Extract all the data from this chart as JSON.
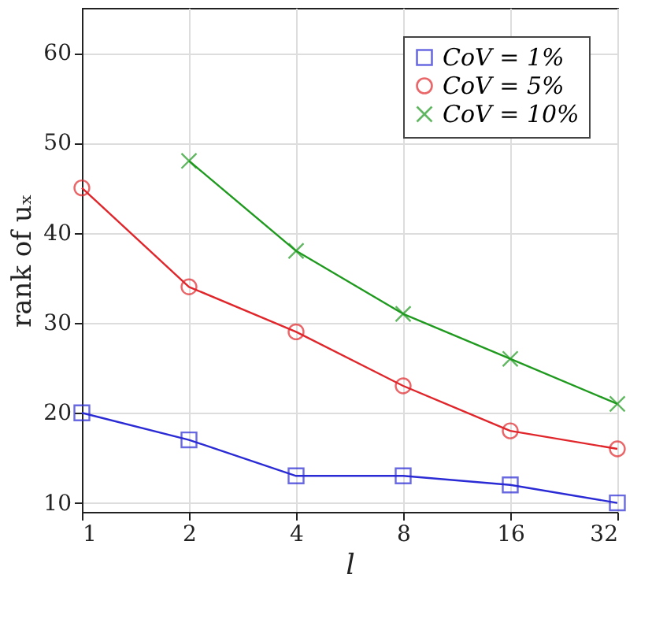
{
  "chart_data": {
    "type": "line",
    "xlabel": "l",
    "ylabel": "rank of uₓ",
    "x": [
      1,
      2,
      4,
      8,
      16,
      32
    ],
    "log": "x",
    "xlim": [
      1,
      32
    ],
    "xticks": [
      1,
      2,
      4,
      8,
      16,
      32
    ],
    "ylim": [
      9,
      65
    ],
    "yticks": [
      10,
      20,
      30,
      40,
      50,
      60
    ],
    "grid": true,
    "legend": "top right",
    "series": [
      {
        "name": "CoV = 1%",
        "color": "#2b2bd6",
        "marker": "square",
        "values": [
          20,
          17,
          13,
          13,
          12,
          10
        ]
      },
      {
        "name": "CoV = 5%",
        "color": "#e0262b",
        "marker": "circle",
        "values": [
          45,
          34,
          29,
          23,
          18,
          16
        ]
      },
      {
        "name": "CoV = 10%",
        "color": "#1f9a1f",
        "marker": "cross",
        "values": [
          null,
          48,
          38,
          31,
          26,
          21
        ]
      }
    ]
  }
}
